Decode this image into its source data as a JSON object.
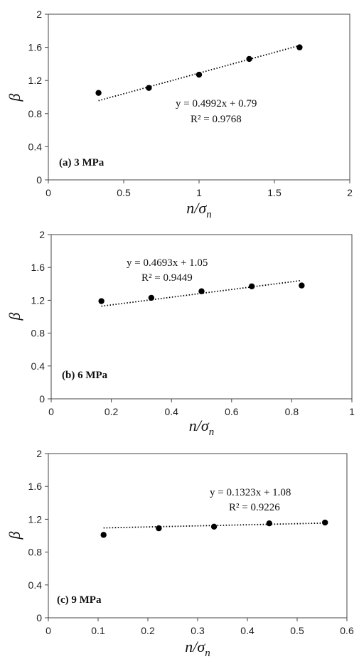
{
  "chart_data": [
    {
      "type": "scatter",
      "panel_label": "(a)  3 MPa",
      "xlabel": "n/σn",
      "ylabel": "β",
      "xlim": [
        0,
        2
      ],
      "ylim": [
        0,
        2
      ],
      "xticks": [
        0,
        0.5,
        1,
        1.5,
        2
      ],
      "xtick_labels": [
        "0",
        "0.5",
        "1",
        "1.5",
        "2"
      ],
      "yticks": [
        0,
        0.4,
        0.8,
        1.2,
        1.6,
        2
      ],
      "ytick_labels": [
        "0",
        "0.4",
        "0.8",
        "1.2",
        "1.6",
        "2"
      ],
      "points": [
        [
          0.333,
          1.05
        ],
        [
          0.667,
          1.11
        ],
        [
          1.0,
          1.27
        ],
        [
          1.333,
          1.46
        ],
        [
          1.667,
          1.6
        ]
      ],
      "trendline": {
        "slope": 0.4992,
        "intercept": 0.79
      },
      "equation": "y = 0.4992x + 0.79",
      "r2": "R² = 0.9768"
    },
    {
      "type": "scatter",
      "panel_label": "(b)  6 MPa",
      "xlabel": "n/σn",
      "ylabel": "β",
      "xlim": [
        0,
        1
      ],
      "ylim": [
        0,
        2
      ],
      "xticks": [
        0,
        0.2,
        0.4,
        0.6,
        0.8,
        1
      ],
      "xtick_labels": [
        "0",
        "0.2",
        "0.4",
        "0.6",
        "0.8",
        "1"
      ],
      "yticks": [
        0,
        0.4,
        0.8,
        1.2,
        1.6,
        2
      ],
      "ytick_labels": [
        "0",
        "0.4",
        "0.8",
        "1.2",
        "1.6",
        "2"
      ],
      "points": [
        [
          0.167,
          1.19
        ],
        [
          0.333,
          1.23
        ],
        [
          0.5,
          1.31
        ],
        [
          0.667,
          1.37
        ],
        [
          0.833,
          1.38
        ]
      ],
      "trendline": {
        "slope": 0.4693,
        "intercept": 1.05
      },
      "equation": "y = 0.4693x + 1.05",
      "r2": "R² = 0.9449"
    },
    {
      "type": "scatter",
      "panel_label": "(c)  9 MPa",
      "xlabel": "n/σn",
      "ylabel": "β",
      "xlim": [
        0,
        0.6
      ],
      "ylim": [
        0,
        2
      ],
      "xticks": [
        0,
        0.1,
        0.2,
        0.3,
        0.4,
        0.5,
        0.6
      ],
      "xtick_labels": [
        "0",
        "0.1",
        "0.2",
        "0.3",
        "0.4",
        "0.5",
        "0.6"
      ],
      "yticks": [
        0,
        0.4,
        0.8,
        1.2,
        1.6,
        2
      ],
      "ytick_labels": [
        "0",
        "0.4",
        "0.8",
        "1.2",
        "1.6",
        "2"
      ],
      "points": [
        [
          0.111,
          1.01
        ],
        [
          0.222,
          1.09
        ],
        [
          0.333,
          1.11
        ],
        [
          0.444,
          1.15
        ],
        [
          0.556,
          1.16
        ]
      ],
      "trendline": {
        "slope": 0.1323,
        "intercept": 1.08
      },
      "equation": "y = 0.1323x + 1.08",
      "r2": "R² = 0.9226"
    }
  ]
}
